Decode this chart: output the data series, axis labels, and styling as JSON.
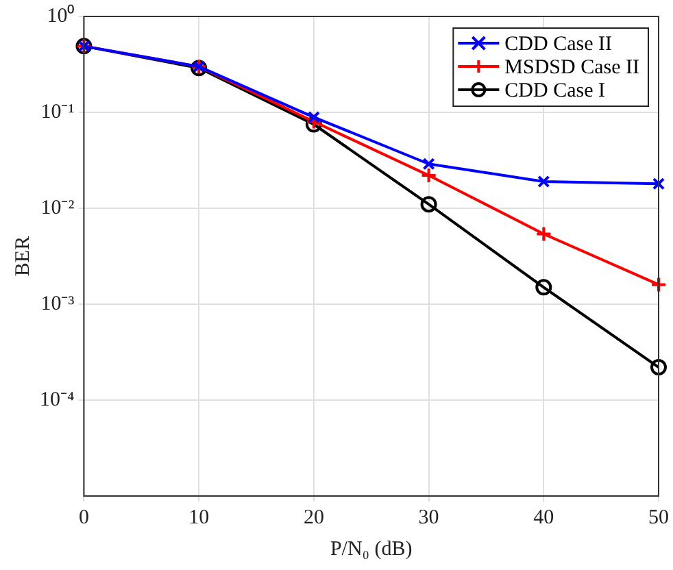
{
  "chart_data": {
    "type": "line",
    "xlabel": "P/N₀ (dB)",
    "ylabel": "BER",
    "log": "y",
    "grid": true,
    "legend": "top right",
    "line_style": "solid",
    "x": [
      0,
      10,
      20,
      30,
      40,
      50
    ],
    "xlim": [
      0,
      50
    ],
    "xticks": [
      0,
      10,
      20,
      30,
      40,
      50
    ],
    "ylim": [
      1e-05,
      1
    ],
    "yticks": [
      {
        "value": 0.0001,
        "label": "10⁻⁴"
      },
      {
        "value": 0.001,
        "label": "10⁻³"
      },
      {
        "value": 0.01,
        "label": "10⁻²"
      },
      {
        "value": 0.1,
        "label": "10⁻¹"
      },
      {
        "value": 1,
        "label": "10⁰"
      }
    ],
    "series": [
      {
        "name": "CDD Case II",
        "color": "#0000ff",
        "marker": "x",
        "values": [
          0.49,
          0.3,
          0.089,
          0.029,
          0.019,
          0.018
        ]
      },
      {
        "name": "MSDSD Case II",
        "color": "#ff0000",
        "marker": "plus",
        "values": [
          0.49,
          0.3,
          0.08,
          0.022,
          0.0054,
          0.0016
        ]
      },
      {
        "name": "CDD Case I",
        "color": "#000000",
        "marker": "circle",
        "values": [
          0.49,
          0.29,
          0.075,
          0.011,
          0.0015,
          0.00022
        ]
      }
    ]
  }
}
